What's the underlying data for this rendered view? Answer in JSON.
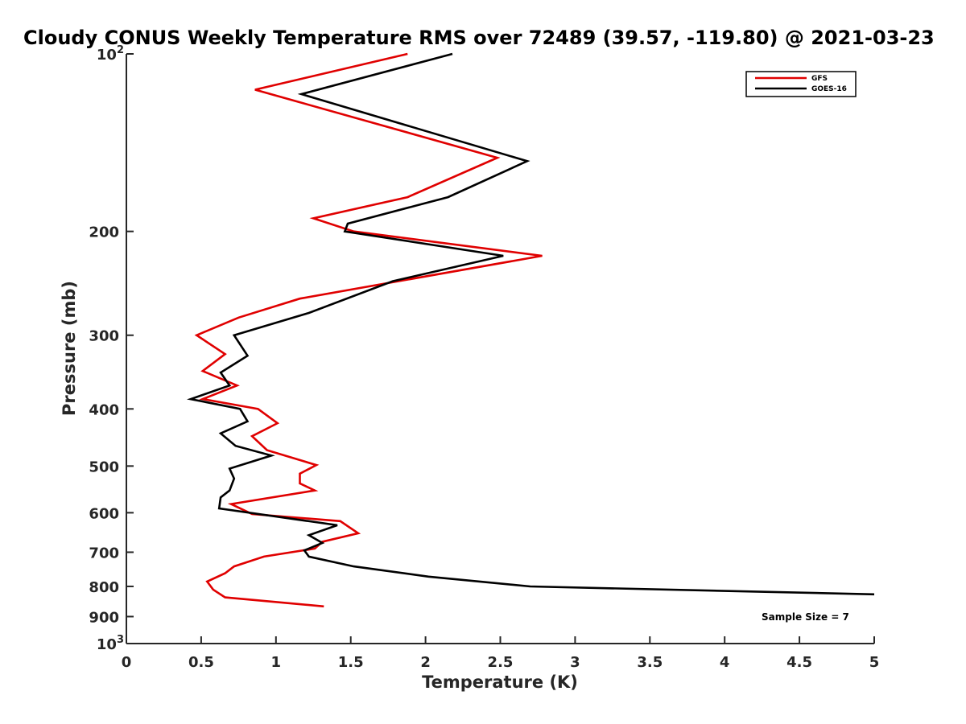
{
  "chart_data": {
    "type": "line",
    "title": "Cloudy CONUS Weekly Temperature RMS over 72489 (39.57, -119.80) @ 2021-03-23",
    "xlabel": "Temperature (K)",
    "ylabel": "Pressure (mb)",
    "xlim": [
      0,
      5
    ],
    "ylim": [
      100,
      1000
    ],
    "y_scale": "log",
    "y_reversed": true,
    "grid": false,
    "legend_position": "top-right",
    "x_ticks": [
      {
        "value": 0,
        "label": "0"
      },
      {
        "value": 0.5,
        "label": "0.5"
      },
      {
        "value": 1,
        "label": "1"
      },
      {
        "value": 1.5,
        "label": "1.5"
      },
      {
        "value": 2,
        "label": "2"
      },
      {
        "value": 2.5,
        "label": "2.5"
      },
      {
        "value": 3,
        "label": "3"
      },
      {
        "value": 3.5,
        "label": "3.5"
      },
      {
        "value": 4,
        "label": "4"
      },
      {
        "value": 4.5,
        "label": "4.5"
      },
      {
        "value": 5,
        "label": "5"
      }
    ],
    "y_ticks": [
      {
        "value": 100,
        "base": "10",
        "exp": "2"
      },
      {
        "value": 200,
        "label": "200"
      },
      {
        "value": 300,
        "label": "300"
      },
      {
        "value": 400,
        "label": "400"
      },
      {
        "value": 500,
        "label": "500"
      },
      {
        "value": 600,
        "label": "600"
      },
      {
        "value": 700,
        "label": "700"
      },
      {
        "value": 800,
        "label": "800"
      },
      {
        "value": 900,
        "label": "900"
      },
      {
        "value": 1000,
        "base": "10",
        "exp": "3"
      }
    ],
    "series": [
      {
        "name": "GFS",
        "color": "#e00000",
        "points": [
          [
            1.88,
            100
          ],
          [
            0.86,
            115
          ],
          [
            2.48,
            150
          ],
          [
            1.88,
            175
          ],
          [
            1.25,
            190
          ],
          [
            1.52,
            200
          ],
          [
            2.78,
            220
          ],
          [
            1.16,
            260
          ],
          [
            0.75,
            280
          ],
          [
            0.47,
            300
          ],
          [
            0.66,
            323
          ],
          [
            0.51,
            345
          ],
          [
            0.74,
            365
          ],
          [
            0.51,
            385
          ],
          [
            0.88,
            400
          ],
          [
            1.01,
            423
          ],
          [
            0.84,
            445
          ],
          [
            0.94,
            470
          ],
          [
            1.27,
            498
          ],
          [
            1.16,
            515
          ],
          [
            1.16,
            535
          ],
          [
            1.26,
            550
          ],
          [
            0.7,
            580
          ],
          [
            0.84,
            603
          ],
          [
            1.43,
            620
          ],
          [
            1.55,
            650
          ],
          [
            1.31,
            672
          ],
          [
            1.26,
            690
          ],
          [
            0.92,
            712
          ],
          [
            0.72,
            740
          ],
          [
            0.66,
            760
          ],
          [
            0.54,
            785
          ],
          [
            0.58,
            810
          ],
          [
            0.66,
            835
          ],
          [
            1.32,
            865
          ]
        ]
      },
      {
        "name": "GOES-16",
        "color": "#000000",
        "points": [
          [
            2.18,
            100
          ],
          [
            1.17,
            117
          ],
          [
            2.68,
            152
          ],
          [
            2.15,
            175
          ],
          [
            1.48,
            194
          ],
          [
            1.46,
            200
          ],
          [
            2.52,
            220
          ],
          [
            1.78,
            243
          ],
          [
            1.22,
            275
          ],
          [
            0.72,
            300
          ],
          [
            0.81,
            325
          ],
          [
            0.63,
            347
          ],
          [
            0.69,
            365
          ],
          [
            0.43,
            385
          ],
          [
            0.76,
            400
          ],
          [
            0.81,
            420
          ],
          [
            0.63,
            440
          ],
          [
            0.73,
            462
          ],
          [
            0.97,
            480
          ],
          [
            0.69,
            505
          ],
          [
            0.72,
            525
          ],
          [
            0.69,
            550
          ],
          [
            0.63,
            565
          ],
          [
            0.62,
            590
          ],
          [
            1.41,
            630
          ],
          [
            1.22,
            655
          ],
          [
            1.31,
            675
          ],
          [
            1.19,
            695
          ],
          [
            1.22,
            712
          ],
          [
            1.52,
            740
          ],
          [
            2.02,
            770
          ],
          [
            2.7,
            800
          ],
          [
            5.0,
            825
          ]
        ]
      }
    ],
    "annotations": [
      {
        "text": "Sample Size = 7"
      }
    ]
  }
}
